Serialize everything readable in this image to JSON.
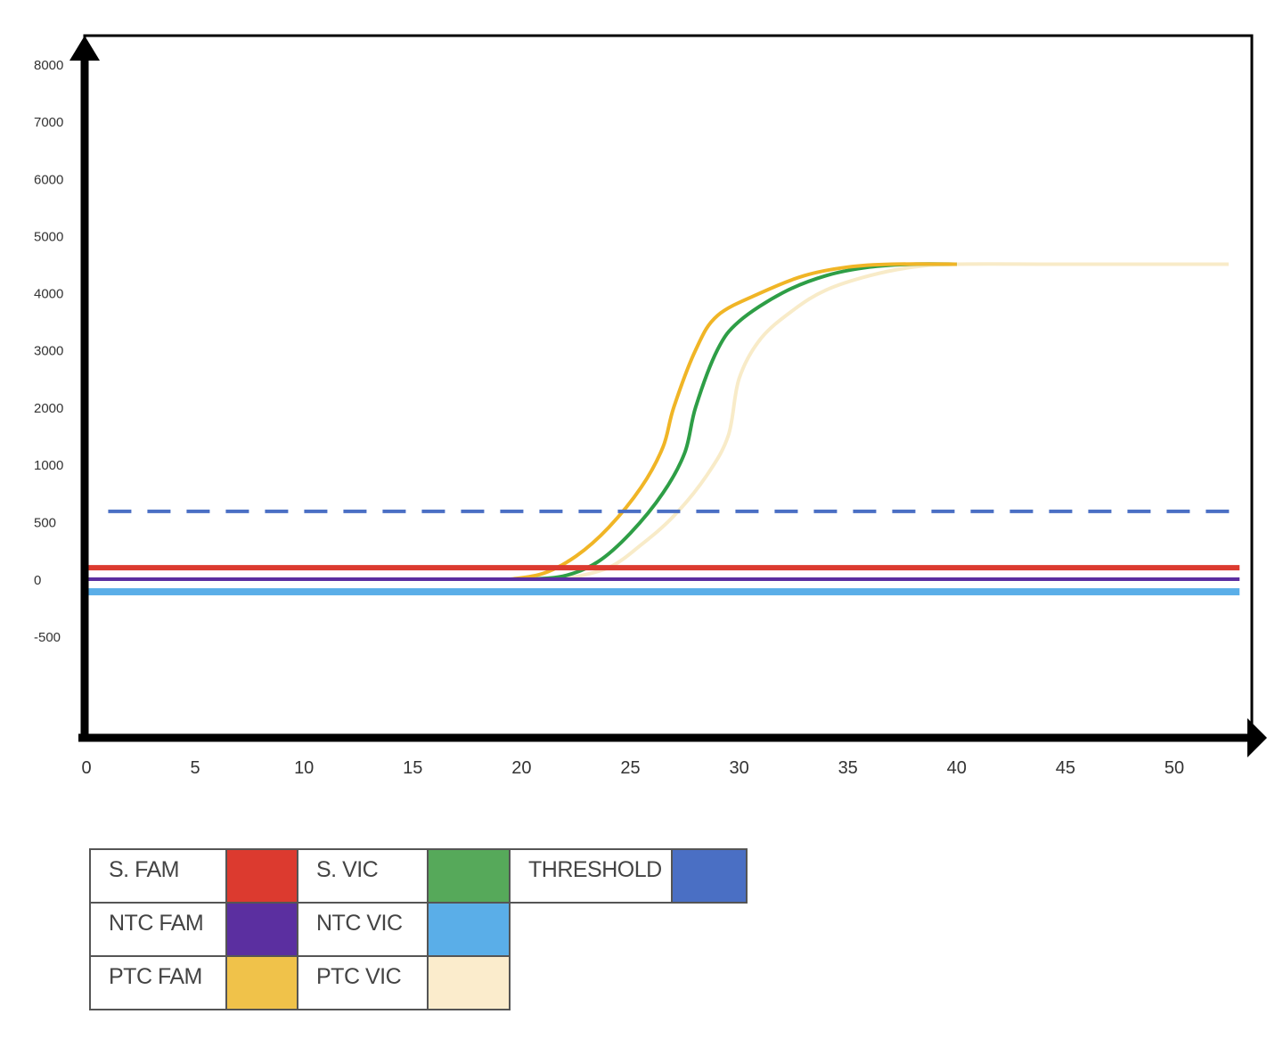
{
  "chart_data": {
    "type": "line",
    "title": "",
    "xlabel": "",
    "ylabel": "",
    "xlim": [
      0,
      53
    ],
    "x_ticks": [
      0,
      5,
      10,
      15,
      20,
      25,
      30,
      35,
      40,
      45,
      50
    ],
    "y_ticks": [
      -500,
      0,
      500,
      1000,
      2000,
      3000,
      4000,
      5000,
      6000,
      7000,
      8000
    ],
    "y_tick_labels": [
      "-500",
      "0",
      "500",
      "1000",
      "2000",
      "3000",
      "4000",
      "5000",
      "6000",
      "7000",
      "8000"
    ],
    "grid": false,
    "legend_position": "bottom-left table",
    "series": [
      {
        "name": "S. FAM",
        "color": "#dc3a2f",
        "style": "solid",
        "points": [
          [
            0,
            100
          ],
          [
            53,
            100
          ]
        ]
      },
      {
        "name": "S. VIC",
        "color": "#2e9e46",
        "style": "solid",
        "points": [
          [
            20.5,
            0
          ],
          [
            22,
            30
          ],
          [
            23.5,
            150
          ],
          [
            25,
            400
          ],
          [
            26.5,
            750
          ],
          [
            27.5,
            1200
          ],
          [
            28,
            2000
          ],
          [
            29,
            3000
          ],
          [
            30,
            3500
          ],
          [
            32,
            4000
          ],
          [
            34,
            4300
          ],
          [
            36,
            4450
          ],
          [
            38,
            4500
          ],
          [
            40,
            4500
          ]
        ]
      },
      {
        "name": "THRESHOLD",
        "color": "#4a6fc4",
        "style": "dashed",
        "points": [
          [
            1,
            590
          ],
          [
            53,
            590
          ]
        ]
      },
      {
        "name": "NTC FAM",
        "color": "#5b2fa0",
        "style": "solid",
        "points": [
          [
            0,
            0
          ],
          [
            53,
            0
          ]
        ]
      },
      {
        "name": "NTC VIC",
        "color": "#5aaee8",
        "style": "solid",
        "points": [
          [
            0,
            -110
          ],
          [
            53,
            -110
          ]
        ]
      },
      {
        "name": "PTC FAM",
        "color": "#f0b526",
        "style": "solid",
        "points": [
          [
            19.5,
            0
          ],
          [
            21,
            50
          ],
          [
            22.5,
            200
          ],
          [
            24,
            450
          ],
          [
            25.5,
            800
          ],
          [
            26.5,
            1300
          ],
          [
            27,
            2000
          ],
          [
            28,
            3000
          ],
          [
            29,
            3600
          ],
          [
            31,
            4000
          ],
          [
            33,
            4300
          ],
          [
            35,
            4450
          ],
          [
            37,
            4500
          ],
          [
            40,
            4500
          ]
        ]
      },
      {
        "name": "PTC VIC",
        "color": "#f8ebc8",
        "style": "solid",
        "points": [
          [
            22,
            0
          ],
          [
            24,
            100
          ],
          [
            25.5,
            300
          ],
          [
            27,
            550
          ],
          [
            28.5,
            900
          ],
          [
            29.5,
            1500
          ],
          [
            30,
            2500
          ],
          [
            31,
            3200
          ],
          [
            32.5,
            3700
          ],
          [
            34,
            4050
          ],
          [
            36,
            4300
          ],
          [
            38,
            4450
          ],
          [
            40,
            4500
          ],
          [
            45,
            4500
          ],
          [
            52.5,
            4500
          ]
        ]
      }
    ]
  },
  "legend": {
    "rows": [
      [
        {
          "label": "S. FAM",
          "color": "#dc3a2f"
        },
        {
          "label": "S. VIC",
          "color": "#56a95a"
        },
        {
          "label": "THRESHOLD",
          "color": "#4a6fc4"
        }
      ],
      [
        {
          "label": "NTC FAM",
          "color": "#5b2fa0"
        },
        {
          "label": "NTC VIC",
          "color": "#5aaee8"
        }
      ],
      [
        {
          "label": "PTC FAM",
          "color": "#f0c24a"
        },
        {
          "label": "PTC VIC",
          "color": "#fbeccc"
        }
      ]
    ]
  }
}
